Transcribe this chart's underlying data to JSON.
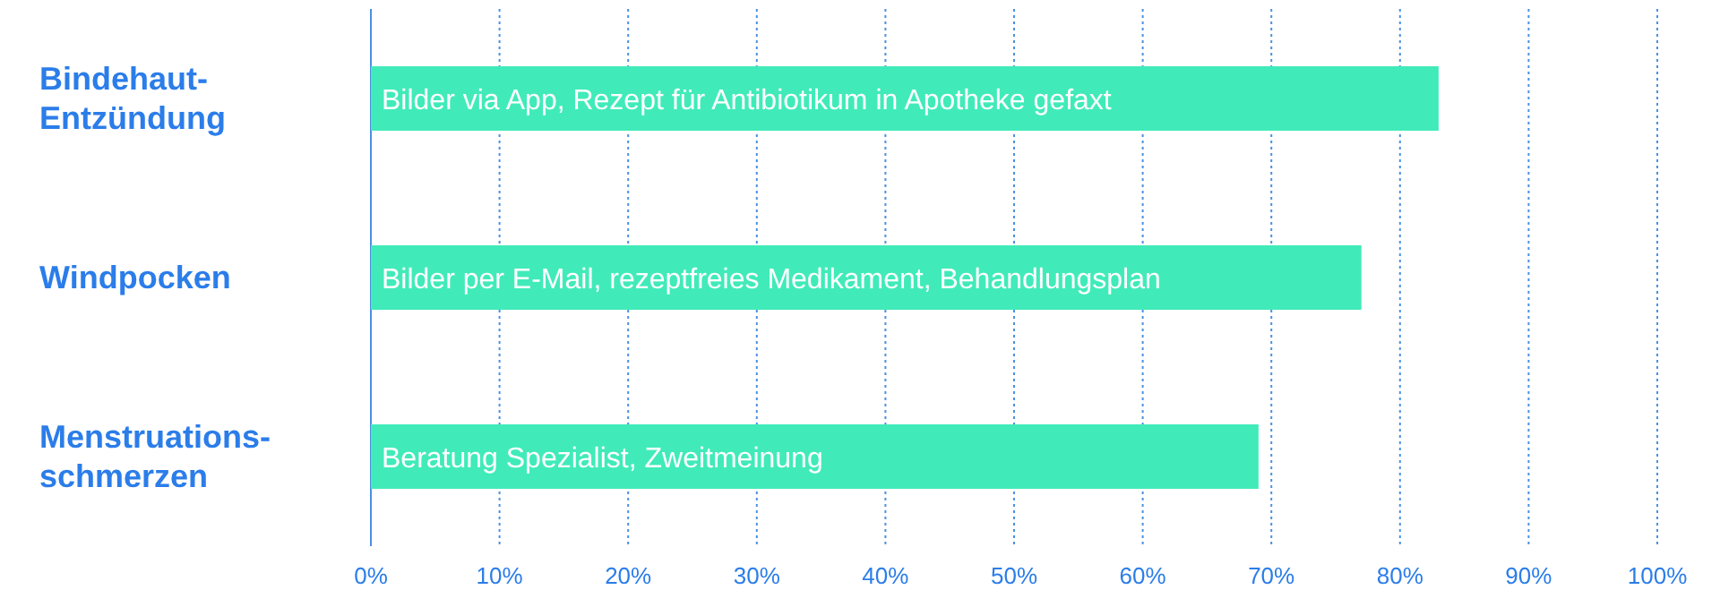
{
  "chart_data": {
    "type": "bar",
    "orientation": "horizontal",
    "categories": [
      "Bindehaut-\nEntzündung",
      "Windpocken",
      "Menstruations-\nschmerzen"
    ],
    "values": [
      83,
      77,
      69
    ],
    "color": "#40ebb9",
    "value_labels": [
      "Bilder via App, Rezept für Antibiotikum in Apotheke gefaxt",
      "Bilder per E-Mail, rezeptfreies Medikament, Behandlungsplan",
      "Beratung Spezialist, Zweitmeinung"
    ],
    "xlim": [
      0,
      100
    ],
    "xticks": [
      {
        "value": 0,
        "label": "0%"
      },
      {
        "value": 10,
        "label": "10%"
      },
      {
        "value": 20,
        "label": "20%"
      },
      {
        "value": 30,
        "label": "30%"
      },
      {
        "value": 40,
        "label": "40%"
      },
      {
        "value": 50,
        "label": "50%"
      },
      {
        "value": 60,
        "label": "60%"
      },
      {
        "value": 70,
        "label": "70%"
      },
      {
        "value": 80,
        "label": "80%"
      },
      {
        "value": 90,
        "label": "90%"
      },
      {
        "value": 100,
        "label": "100%"
      }
    ],
    "grid": "x"
  }
}
